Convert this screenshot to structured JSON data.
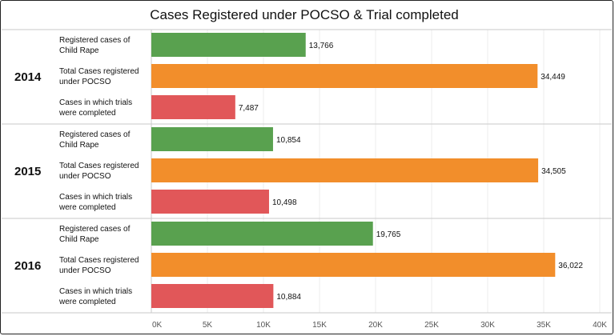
{
  "chart_data": {
    "type": "bar",
    "orientation": "horizontal",
    "title": "Cases Registered under POCSO & Trial completed",
    "xlim": [
      0,
      40000
    ],
    "x_ticks": [
      "0K",
      "5K",
      "10K",
      "15K",
      "20K",
      "25K",
      "30K",
      "35K",
      "40K"
    ],
    "measures": [
      {
        "name": "Registered cases of Child Rape",
        "line1": "Registered cases of",
        "line2": "Child Rape",
        "color": "#59a14f"
      },
      {
        "name": "Total Cases registered under POCSO",
        "line1": "Total Cases registered",
        "line2": "under POCSO",
        "color": "#f28e2b"
      },
      {
        "name": "Cases in which trials were completed",
        "line1": "Cases in which trials",
        "line2": "were completed",
        "color": "#e15759"
      }
    ],
    "groups": [
      {
        "year": "2014",
        "values": [
          13766,
          34449,
          7487
        ],
        "labels": [
          "13,766",
          "34,449",
          "7,487"
        ]
      },
      {
        "year": "2015",
        "values": [
          10854,
          34505,
          10498
        ],
        "labels": [
          "10,854",
          "34,505",
          "10,498"
        ]
      },
      {
        "year": "2016",
        "values": [
          19765,
          36022,
          10884
        ],
        "labels": [
          "19,765",
          "36,022",
          "10,884"
        ]
      }
    ],
    "grid": true
  }
}
